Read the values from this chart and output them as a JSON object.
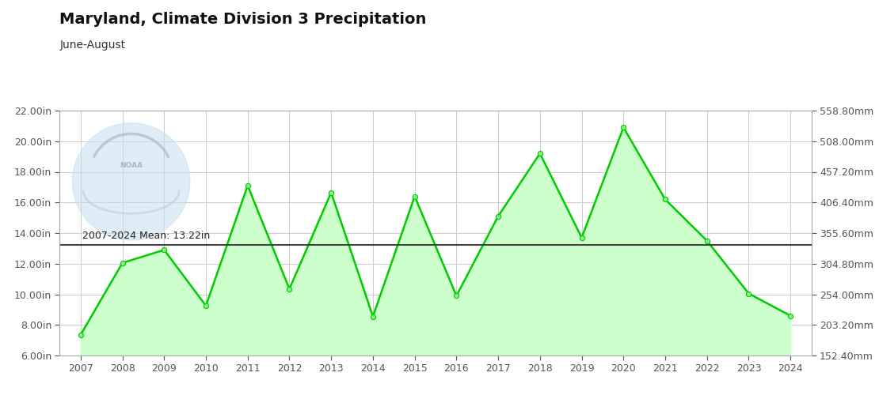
{
  "title": "Maryland, Climate Division 3 Precipitation",
  "subtitle": "June-August",
  "years": [
    2007,
    2008,
    2009,
    2010,
    2011,
    2012,
    2013,
    2014,
    2015,
    2016,
    2017,
    2018,
    2019,
    2020,
    2021,
    2022,
    2023,
    2024
  ],
  "values_in": [
    7.35,
    12.05,
    12.9,
    9.25,
    17.1,
    10.35,
    16.65,
    8.55,
    16.4,
    9.9,
    15.1,
    19.2,
    13.7,
    20.9,
    16.2,
    13.5,
    10.05,
    8.6
  ],
  "mean": 13.22,
  "mean_label": "2007-2024 Mean: 13.22in",
  "ylim_in": [
    6.0,
    22.0
  ],
  "yticks_in": [
    6.0,
    8.0,
    10.0,
    12.0,
    14.0,
    16.0,
    18.0,
    20.0,
    22.0
  ],
  "ytick_labels_in": [
    "6.00in",
    "8.00in",
    "10.00in",
    "12.00in",
    "14.00in",
    "16.00in",
    "18.00in",
    "20.00in",
    "22.00in"
  ],
  "ytick_labels_mm": [
    "152.40mm",
    "203.20mm",
    "254.00mm",
    "304.80mm",
    "355.60mm",
    "406.40mm",
    "457.20mm",
    "508.00mm",
    "558.80mm"
  ],
  "line_color": "#00cc00",
  "fill_color": "#ccffcc",
  "mean_line_color": "#444444",
  "marker_color": "#88ee88",
  "background_color": "#ffffff",
  "grid_color": "#cccccc",
  "title_fontsize": 14,
  "subtitle_fontsize": 10,
  "tick_fontsize": 9,
  "noaa_circle_color": "#c5dff0",
  "noaa_text_color": "#aabbcc"
}
